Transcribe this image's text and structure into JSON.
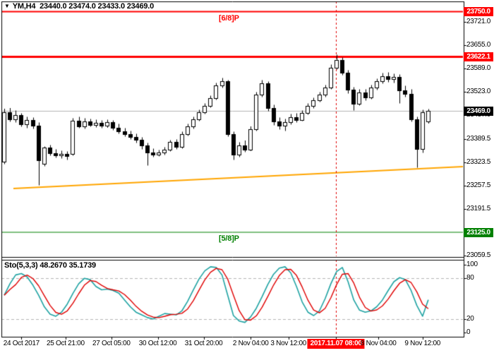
{
  "header": {
    "symbol": "YM,H4",
    "ohlc": "23440.0 23474.0 23433.0 23469.0",
    "dropdown_icon": "▼"
  },
  "colors": {
    "background": "#FFFFFF",
    "frame": "#000000",
    "bull_body": "#FFFFFF",
    "bear_body": "#000000",
    "candle_outline": "#000000",
    "murrey_6_8": "#FF0000",
    "resistance": "#FF0000",
    "murrey_5_8": "#008000",
    "trendline": "#FFA500",
    "current_price_line": "#B3B3B3",
    "current_price_badge": "#000000",
    "vline": "#E00000",
    "sto_main": "#1FA3A3",
    "sto_signal": "#E00000",
    "sto_level_dash": "#B5B5B5"
  },
  "chart_data": {
    "type": "candlestick",
    "title": "YM,H4 23440.0 23474.0 23433.0 23469.0",
    "symbol": "YM",
    "timeframe": "H4",
    "price_axis": {
      "ticks": [
        23721.0,
        23655.0,
        23589.0,
        23523.0,
        23457.0,
        23389.5,
        23323.5,
        23257.5,
        23191.5,
        23059.5
      ]
    },
    "levels": [
      {
        "price": 23750.0,
        "label": "[6/8]P",
        "color": "#FF0000",
        "width": 2,
        "badge": true
      },
      {
        "price": 23622.1,
        "label": "",
        "color": "#FF0000",
        "width": 3,
        "badge": true
      },
      {
        "price": 23125.0,
        "label": "[5/8]P",
        "color": "#008000",
        "width": 1,
        "badge": true
      }
    ],
    "current_price": {
      "value": 23469.0
    },
    "trendline": {
      "from_bar": 1.6,
      "from_price": 23249,
      "to_bar": 80.2,
      "to_price": 23311,
      "color": "#FFA500"
    },
    "vline": {
      "bar": 58,
      "label": "2017.11.07 08:00"
    },
    "time_axis": [
      {
        "label": "24 Oct 2017",
        "bar": 3.0,
        "badge": false
      },
      {
        "label": "25 Oct 21:00",
        "bar": 10.7,
        "badge": false
      },
      {
        "label": "27 Oct 05:00",
        "bar": 18.7,
        "badge": false
      },
      {
        "label": "30 Oct 12:00",
        "bar": 26.8,
        "badge": false
      },
      {
        "label": "31 Oct 20:00",
        "bar": 34.8,
        "badge": false
      },
      {
        "label": "2 Nov 04:00",
        "bar": 43.0,
        "badge": false
      },
      {
        "label": "3 Nov 12:00",
        "bar": 49.6,
        "badge": false
      },
      {
        "label": "2017.11.07 08:00",
        "bar": 57.9,
        "badge": true
      },
      {
        "label": "8 Nov 04:00",
        "bar": 65.3,
        "badge": false
      },
      {
        "label": "9 Nov 12:00",
        "bar": 73.0,
        "badge": false
      }
    ],
    "candles": [
      [
        23325,
        23475,
        23318,
        23465
      ],
      [
        23465,
        23477,
        23438,
        23446
      ],
      [
        23446,
        23470,
        23436,
        23458
      ],
      [
        23458,
        23462,
        23424,
        23432
      ],
      [
        23432,
        23452,
        23420,
        23444
      ],
      [
        23444,
        23450,
        23418,
        23428
      ],
      [
        23428,
        23436,
        23258,
        23330
      ],
      [
        23320,
        23368,
        23312,
        23365
      ],
      [
        23365,
        23372,
        23342,
        23350
      ],
      [
        23350,
        23360,
        23336,
        23344
      ],
      [
        23344,
        23356,
        23334,
        23348
      ],
      [
        23348,
        23354,
        23330,
        23342
      ],
      [
        23348,
        23448,
        23342,
        23441
      ],
      [
        23441,
        23452,
        23420,
        23426
      ],
      [
        23426,
        23448,
        23418,
        23440
      ],
      [
        23440,
        23446,
        23424,
        23430
      ],
      [
        23430,
        23444,
        23422,
        23436
      ],
      [
        23436,
        23442,
        23420,
        23427
      ],
      [
        23427,
        23444,
        23421,
        23438
      ],
      [
        23438,
        23442,
        23414,
        23422
      ],
      [
        23422,
        23432,
        23404,
        23412
      ],
      [
        23412,
        23420,
        23396,
        23404
      ],
      [
        23404,
        23412,
        23388,
        23396
      ],
      [
        23396,
        23404,
        23378,
        23387
      ],
      [
        23387,
        23394,
        23360,
        23372
      ],
      [
        23372,
        23378,
        23314,
        23352
      ],
      [
        23352,
        23362,
        23338,
        23346
      ],
      [
        23346,
        23358,
        23340,
        23352
      ],
      [
        23352,
        23366,
        23344,
        23360
      ],
      [
        23360,
        23386,
        23354,
        23381
      ],
      [
        23381,
        23388,
        23360,
        23367
      ],
      [
        23367,
        23410,
        23362,
        23404
      ],
      [
        23404,
        23432,
        23398,
        23426
      ],
      [
        23426,
        23452,
        23418,
        23446
      ],
      [
        23446,
        23472,
        23440,
        23466
      ],
      [
        23466,
        23490,
        23460,
        23484
      ],
      [
        23484,
        23512,
        23478,
        23506
      ],
      [
        23506,
        23548,
        23500,
        23541
      ],
      [
        23541,
        23562,
        23534,
        23553
      ],
      [
        23553,
        23556,
        23396,
        23403
      ],
      [
        23403,
        23410,
        23330,
        23345
      ],
      [
        23345,
        23380,
        23338,
        23372
      ],
      [
        23372,
        23385,
        23352,
        23360
      ],
      [
        23360,
        23425,
        23355,
        23418
      ],
      [
        23418,
        23522,
        23412,
        23515
      ],
      [
        23515,
        23556,
        23508,
        23548
      ],
      [
        23548,
        23552,
        23468,
        23478
      ],
      [
        23478,
        23486,
        23428,
        23440
      ],
      [
        23440,
        23450,
        23416,
        23428
      ],
      [
        23428,
        23446,
        23412,
        23438
      ],
      [
        23438,
        23460,
        23430,
        23452
      ],
      [
        23452,
        23462,
        23436,
        23444
      ],
      [
        23444,
        23470,
        23440,
        23464
      ],
      [
        23464,
        23490,
        23458,
        23483
      ],
      [
        23483,
        23506,
        23476,
        23500
      ],
      [
        23500,
        23522,
        23494,
        23515
      ],
      [
        23515,
        23542,
        23508,
        23536
      ],
      [
        23536,
        23600,
        23530,
        23592
      ],
      [
        23592,
        23628,
        23586,
        23614
      ],
      [
        23614,
        23620,
        23570,
        23578
      ],
      [
        23578,
        23584,
        23518,
        23530
      ],
      [
        23530,
        23536,
        23470,
        23490
      ],
      [
        23490,
        23530,
        23484,
        23522
      ],
      [
        23522,
        23530,
        23498,
        23508
      ],
      [
        23508,
        23542,
        23502,
        23536
      ],
      [
        23536,
        23560,
        23528,
        23553
      ],
      [
        23553,
        23576,
        23546,
        23568
      ],
      [
        23568,
        23578,
        23550,
        23560
      ],
      [
        23560,
        23574,
        23548,
        23566
      ],
      [
        23566,
        23572,
        23490,
        23528
      ],
      [
        23528,
        23540,
        23508,
        23518
      ],
      [
        23518,
        23530,
        23438,
        23446
      ],
      [
        23446,
        23452,
        23308,
        23362
      ],
      [
        23362,
        23472,
        23350,
        23466
      ],
      [
        23440,
        23474,
        23433,
        23469
      ]
    ],
    "stochastic": {
      "name": "Sto(5,3,3)",
      "values_display": "48.2670 35.1739",
      "k_value": 48.267,
      "d_value": 35.1739,
      "overbought": 80,
      "oversold": 20,
      "scale_ticks": [
        100,
        80,
        20,
        0
      ],
      "k": [
        55,
        72,
        85,
        87,
        82,
        70,
        55,
        38,
        27,
        24,
        30,
        42,
        58,
        72,
        80,
        78,
        68,
        63,
        64,
        62,
        58,
        48,
        38,
        30,
        26,
        22,
        20,
        24,
        28,
        27,
        26,
        32,
        46,
        63,
        79,
        91,
        97,
        96,
        85,
        55,
        25,
        17,
        15,
        23,
        36,
        53,
        71,
        86,
        95,
        97,
        88,
        68,
        45,
        30,
        25,
        32,
        50,
        72,
        90,
        96,
        75,
        48,
        33,
        30,
        32,
        38,
        48,
        62,
        75,
        81,
        78,
        62,
        40,
        24,
        48.3
      ],
      "d": [
        55,
        63.5,
        70.7,
        81.3,
        84.7,
        79.7,
        69,
        54.3,
        40,
        29.7,
        27,
        32,
        43.3,
        57.3,
        70,
        76.7,
        75.3,
        69.7,
        65,
        63,
        61.3,
        56,
        48,
        38.7,
        31.3,
        26,
        22.7,
        22,
        24,
        26.3,
        27,
        28.3,
        34.7,
        47,
        62.7,
        77.7,
        89,
        94.7,
        92.7,
        78.7,
        55,
        32.3,
        19,
        18.3,
        24.7,
        37.3,
        53.3,
        70,
        84,
        92.7,
        93.3,
        84.3,
        67,
        47.7,
        33.3,
        29,
        35.7,
        51.3,
        70.7,
        86,
        87,
        73,
        52,
        37,
        31.7,
        33.3,
        39.3,
        49.3,
        61.7,
        72.7,
        78,
        73.7,
        60,
        42,
        35.2
      ]
    }
  }
}
